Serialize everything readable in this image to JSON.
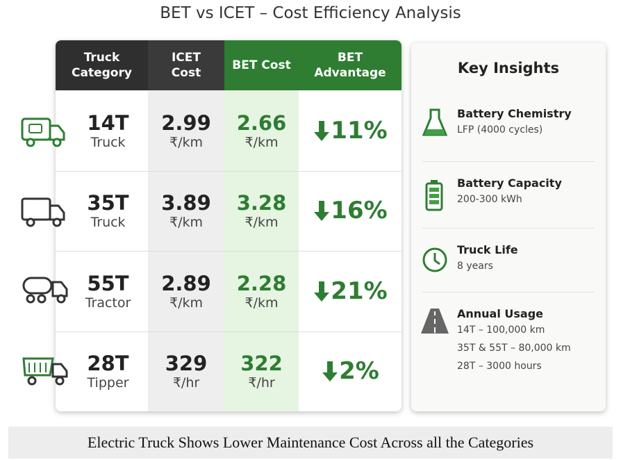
{
  "title": "BET vs ICET – Cost Efficiency Analysis",
  "table": {
    "headers": [
      "Truck Category",
      "ICET Cost",
      "BET Cost",
      "BET Advantage"
    ],
    "rows": [
      {
        "category": "14T",
        "type": "Truck",
        "icet": "2.99",
        "icet_unit": "₹/km",
        "bet": "2.66",
        "bet_unit": "₹/km",
        "advantage": "11%"
      },
      {
        "category": "35T",
        "type": "Truck",
        "icet": "3.89",
        "icet_unit": "₹/km",
        "bet": "3.28",
        "bet_unit": "₹/km",
        "advantage": "16%"
      },
      {
        "category": "55T",
        "type": "Tractor",
        "icet": "2.89",
        "icet_unit": "₹/km",
        "bet": "2.28",
        "bet_unit": "₹/km",
        "advantage": "21%"
      },
      {
        "category": "28T",
        "type": "Tipper",
        "icet": "329",
        "icet_unit": "₹/hr",
        "bet": "322",
        "bet_unit": "₹/hr",
        "advantage": "2%"
      }
    ]
  },
  "insights": {
    "title": "Key Insights",
    "items": [
      {
        "heading": "Battery Chemistry",
        "lines": [
          "LFP (4000 cycles)"
        ]
      },
      {
        "heading": "Battery Capacity",
        "lines": [
          "200-300 kWh"
        ]
      },
      {
        "heading": "Truck Life",
        "lines": [
          "8 years"
        ]
      },
      {
        "heading": "Annual Usage",
        "lines": [
          "14T – 100,000 km",
          "35T & 55T – 80,000 km",
          "28T – 3000 hours"
        ]
      }
    ]
  },
  "caption": "Electric Truck Shows Lower Maintenance Cost Across all the Categories"
}
